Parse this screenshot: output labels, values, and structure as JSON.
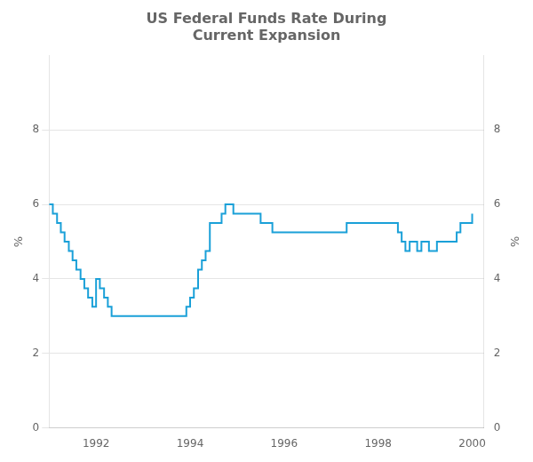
{
  "chart_data": {
    "type": "step",
    "title": "US Federal Funds Rate During\nCurrent Expansion",
    "y_label": "%",
    "y2_label": "%",
    "x": [
      1991,
      1991.08,
      1991.17,
      1991.25,
      1991.33,
      1991.42,
      1991.5,
      1991.58,
      1991.67,
      1991.75,
      1991.83,
      1991.92,
      1992,
      1992.08,
      1992.17,
      1992.25,
      1992.33,
      1992.42,
      1992.5,
      1992.58,
      1992.67,
      1992.75,
      1992.83,
      1992.92,
      1993,
      1993.08,
      1993.17,
      1993.25,
      1993.33,
      1993.42,
      1993.5,
      1993.58,
      1993.67,
      1993.75,
      1993.83,
      1993.92,
      1994,
      1994.08,
      1994.17,
      1994.25,
      1994.33,
      1994.42,
      1994.5,
      1994.58,
      1994.67,
      1994.75,
      1994.83,
      1994.92,
      1995,
      1995.08,
      1995.17,
      1995.25,
      1995.33,
      1995.42,
      1995.5,
      1995.58,
      1995.67,
      1995.75,
      1995.83,
      1995.92,
      1996,
      1996.08,
      1996.17,
      1996.25,
      1996.33,
      1996.42,
      1996.5,
      1996.58,
      1996.67,
      1996.75,
      1996.83,
      1996.92,
      1997,
      1997.08,
      1997.17,
      1997.25,
      1997.33,
      1997.42,
      1997.5,
      1997.58,
      1997.67,
      1997.75,
      1997.83,
      1997.92,
      1998,
      1998.08,
      1998.17,
      1998.25,
      1998.33,
      1998.42,
      1998.5,
      1998.58,
      1998.67,
      1998.75,
      1998.83,
      1998.92,
      1999,
      1999.08,
      1999.17,
      1999.25,
      1999.33,
      1999.42,
      1999.5,
      1999.58,
      1999.67,
      1999.75,
      1999.83,
      1999.92,
      2000
    ],
    "series": [
      {
        "color": "#1aa0d8",
        "values": [
          6.0,
          5.75,
          5.5,
          5.25,
          5.0,
          4.75,
          4.5,
          4.25,
          4.0,
          3.75,
          3.5,
          3.25,
          4.0,
          3.75,
          3.5,
          3.25,
          3.0,
          3.0,
          3.0,
          3.0,
          3.0,
          3.0,
          3.0,
          3.0,
          3.0,
          3.0,
          3.0,
          3.0,
          3.0,
          3.0,
          3.0,
          3.0,
          3.0,
          3.0,
          3.0,
          3.25,
          3.5,
          3.75,
          4.25,
          4.5,
          4.75,
          5.5,
          5.5,
          5.5,
          5.75,
          6.0,
          6.0,
          5.75,
          5.75,
          5.75,
          5.75,
          5.75,
          5.75,
          5.75,
          5.5,
          5.5,
          5.5,
          5.25,
          5.25,
          5.25,
          5.25,
          5.25,
          5.25,
          5.25,
          5.25,
          5.25,
          5.25,
          5.25,
          5.25,
          5.25,
          5.25,
          5.25,
          5.25,
          5.25,
          5.25,
          5.25,
          5.5,
          5.5,
          5.5,
          5.5,
          5.5,
          5.5,
          5.5,
          5.5,
          5.5,
          5.5,
          5.5,
          5.5,
          5.5,
          5.25,
          5.0,
          4.75,
          5.0,
          5.0,
          4.75,
          5.0,
          5.0,
          4.75,
          4.75,
          5.0,
          5.0,
          5.0,
          5.0,
          5.0,
          5.25,
          5.5,
          5.5,
          5.5,
          5.75
        ]
      }
    ],
    "xlim": [
      1991.0,
      2000.25
    ],
    "xticks": [
      1992,
      1994,
      1996,
      1998,
      2000
    ],
    "ylim": [
      0,
      10
    ],
    "yticks": [
      0,
      2,
      4,
      6,
      8
    ],
    "y2lim": [
      0,
      10
    ],
    "y2ticks": [
      0,
      2,
      4,
      6,
      8
    ],
    "grid": true
  }
}
